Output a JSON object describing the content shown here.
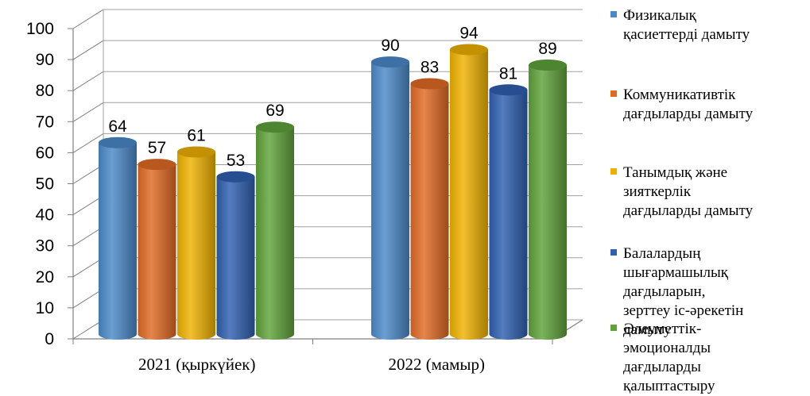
{
  "chart_data": {
    "type": "bar",
    "categories": [
      "2021 (қыркүйек)",
      "2022 (мамыр)"
    ],
    "series": [
      {
        "name": "Физикалық\nқасиеттерді дамыту",
        "values": [
          64,
          90
        ],
        "color": "#4a89c8"
      },
      {
        "name": "Коммуникативтік\nдағдыларды дамыту",
        "values": [
          57,
          83
        ],
        "color": "#e06a24"
      },
      {
        "name": "Танымдық және\nзияткерлік\nдағдыларды дамыту",
        "values": [
          61,
          94
        ],
        "color": "#efb100"
      },
      {
        "name": "Балалардың\nшығармашылық\nдағдыларын,\nзерттеу іс-әрекетін\nдамыту",
        "values": [
          53,
          81
        ],
        "color": "#2f5fb0"
      },
      {
        "name": "Әлеуметтік-\nэмоционалды\nдағдыларды\nқалыптастыру",
        "values": [
          69,
          89
        ],
        "color": "#5fa23a"
      }
    ],
    "yticks": [
      "0",
      "10",
      "20",
      "30",
      "40",
      "50",
      "60",
      "70",
      "80",
      "90",
      "100"
    ],
    "ylim": [
      0,
      100
    ],
    "grid": true,
    "legend_position": "right",
    "title": "",
    "xlabel": "",
    "ylabel": ""
  }
}
